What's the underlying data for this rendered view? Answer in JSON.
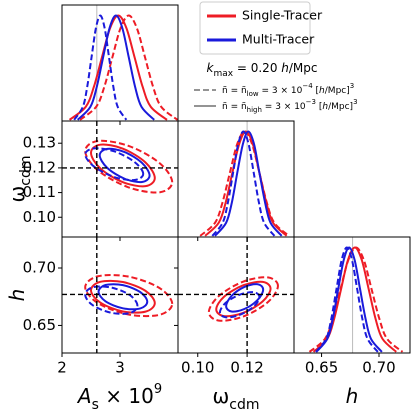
{
  "chart_data": {
    "type": "corner",
    "params": [
      {
        "label": [
          "A",
          "s",
          " × 10",
          "9"
        ],
        "lim": [
          2,
          4
        ],
        "xticks": [
          2,
          3
        ]
      },
      {
        "label": [
          "ω",
          "cdm"
        ],
        "lim": [
          0.092,
          0.139
        ],
        "xticks": [
          {
            "value": 0.1,
            "label": "0.10"
          },
          {
            "value": 0.12,
            "label": "0.12"
          }
        ],
        "yticks": [
          {
            "value": 0.1,
            "label": "0.10"
          },
          {
            "value": 0.11,
            "label": "0.11"
          },
          {
            "value": 0.12,
            "label": "0.12"
          },
          {
            "value": 0.13,
            "label": "0.13"
          }
        ]
      },
      {
        "label": [
          "h"
        ],
        "lim": [
          0.626,
          0.727
        ],
        "xticks": [
          {
            "value": 0.65,
            "label": "0.65"
          },
          {
            "value": 0.7,
            "label": "0.70"
          }
        ],
        "yticks": [
          {
            "value": 0.65,
            "label": "0.65"
          },
          {
            "value": 0.7,
            "label": "0.70"
          }
        ]
      }
    ],
    "marginal_ylim": [
      0,
      1.1
    ],
    "fiducial": [
      2.6,
      0.12,
      0.677
    ],
    "annotation": [
      "k",
      "max",
      " = 0.20 ",
      "h",
      "/Mpc"
    ],
    "line_styles": [
      {
        "dash": "dashed",
        "label": [
          "ñ = ñ",
          "low",
          " = 3 × 10",
          "−4",
          " [",
          "h",
          "/Mpc]",
          "3"
        ]
      },
      {
        "dash": "solid",
        "label": [
          "ñ = ñ",
          "high",
          " = 3 × 10",
          "−3",
          " [",
          "h",
          "/Mpc]",
          "3"
        ]
      }
    ],
    "series": [
      {
        "name": "Single-Tracer",
        "color": "#ee1c25",
        "styles": [
          {
            "marginals": [
              {
                "x": [
                  2.31,
                  2.59,
                  2.73,
                  2.87,
                  3.01,
                  3.15,
                  3.29,
                  3.43,
                  3.57,
                  3.71,
                  3.99
                ],
                "values": [
                  0.011,
                  0.135,
                  0.325,
                  0.607,
                  0.882,
                  1,
                  0.882,
                  0.607,
                  0.325,
                  0.135,
                  0.011
                ]
              },
              {
                "x": [
                  0.101,
                  0.107,
                  0.11,
                  0.113,
                  0.116,
                  0.119,
                  0.122,
                  0.125,
                  0.128,
                  0.131,
                  0.137
                ],
                "values": [
                  0.011,
                  0.135,
                  0.325,
                  0.607,
                  0.882,
                  1,
                  0.882,
                  0.607,
                  0.325,
                  0.135,
                  0.011
                ]
              },
              {
                "x": [
                  0.6395,
                  0.653,
                  0.6598,
                  0.6665,
                  0.6733,
                  0.68,
                  0.6868,
                  0.6935,
                  0.7003,
                  0.707,
                  0.7205
                ],
                "values": [
                  0.011,
                  0.135,
                  0.325,
                  0.607,
                  0.882,
                  1,
                  0.882,
                  0.607,
                  0.325,
                  0.135,
                  0.011
                ]
              }
            ],
            "contours": [
              {
                "x": [
                  3.9,
                  3.68,
                  3.15,
                  2.62,
                  2.4,
                  2.62,
                  3.15,
                  3.68
                ],
                "y": [
                  0.1142,
                  0.122,
                  0.1289,
                  0.1309,
                  0.1268,
                  0.119,
                  0.1121,
                  0.1101
                ]
              },
              {
                "x": [
                  3.9,
                  3.68,
                  3.15,
                  2.62,
                  2.4,
                  2.62,
                  3.15,
                  3.68
                ],
                "y": [
                  0.6688,
                  0.6826,
                  0.6925,
                  0.6928,
                  0.6832,
                  0.6694,
                  0.6595,
                  0.6592
                ]
              },
              {
                "x": [
                  0.1325,
                  0.1284,
                  0.1185,
                  0.1086,
                  0.1045,
                  0.1086,
                  0.1185,
                  0.1284
                ],
                "y": [
                  0.6844,
                  0.6918,
                  0.6882,
                  0.6757,
                  0.6616,
                  0.6542,
                  0.6578,
                  0.6703
                ]
              }
            ]
          },
          {
            "marginals": [
              {
                "x": [
                  2.13,
                  2.41,
                  2.55,
                  2.69,
                  2.83,
                  2.97,
                  3.11,
                  3.25,
                  3.39,
                  3.53,
                  3.81
                ],
                "values": [
                  0.011,
                  0.135,
                  0.325,
                  0.607,
                  0.882,
                  1,
                  0.882,
                  0.607,
                  0.325,
                  0.135,
                  0.011
                ]
              },
              {
                "x": [
                  0.103,
                  0.1085,
                  0.1113,
                  0.114,
                  0.1168,
                  0.1195,
                  0.1223,
                  0.125,
                  0.1278,
                  0.1305,
                  0.136
                ],
                "values": [
                  0.011,
                  0.135,
                  0.325,
                  0.607,
                  0.882,
                  1,
                  0.882,
                  0.607,
                  0.325,
                  0.135,
                  0.011
                ]
              },
              {
                "x": [
                  0.643,
                  0.655,
                  0.661,
                  0.667,
                  0.673,
                  0.679,
                  0.685,
                  0.691,
                  0.697,
                  0.703,
                  0.715
                ],
                "values": [
                  0.011,
                  0.135,
                  0.325,
                  0.607,
                  0.882,
                  1,
                  0.882,
                  0.607,
                  0.325,
                  0.135,
                  0.011
                ]
              }
            ],
            "contours": [
              {
                "x": [
                  3.6,
                  3.44,
                  3.05,
                  2.66,
                  2.5,
                  2.66,
                  3.05,
                  3.44
                ],
                "y": [
                  0.1159,
                  0.1222,
                  0.1278,
                  0.1294,
                  0.1261,
                  0.1198,
                  0.1142,
                  0.1126
                ]
              },
              {
                "x": [
                  3.6,
                  3.44,
                  3.05,
                  2.66,
                  2.5,
                  2.66,
                  3.05,
                  3.44
                ],
                "y": [
                  0.6694,
                  0.6801,
                  0.6878,
                  0.688,
                  0.6806,
                  0.6699,
                  0.6622,
                  0.662
                ]
              },
              {
                "x": [
                  0.1295,
                  0.1263,
                  0.1185,
                  0.1107,
                  0.1075,
                  0.1107,
                  0.1185,
                  0.1263
                ],
                "y": [
                  0.682,
                  0.6879,
                  0.685,
                  0.6751,
                  0.664,
                  0.6581,
                  0.661,
                  0.6709
                ]
              }
            ]
          }
        ]
      },
      {
        "name": "Multi-Tracer",
        "color": "#1a1adb",
        "styles": [
          {
            "marginals": [
              {
                "x": [
                  2.21,
                  2.36,
                  2.435,
                  2.51,
                  2.585,
                  2.66,
                  2.735,
                  2.81,
                  2.885,
                  2.96,
                  3.11
                ],
                "values": [
                  0.011,
                  0.135,
                  0.325,
                  0.607,
                  0.882,
                  1,
                  0.882,
                  0.607,
                  0.325,
                  0.135,
                  0.011
                ]
              },
              {
                "x": [
                  0.1059,
                  0.1101,
                  0.1122,
                  0.1143,
                  0.1164,
                  0.1185,
                  0.1206,
                  0.1227,
                  0.1248,
                  0.1269,
                  0.1311
                ],
                "values": [
                  0.011,
                  0.135,
                  0.325,
                  0.607,
                  0.882,
                  1,
                  0.882,
                  0.607,
                  0.325,
                  0.135,
                  0.011
                ]
              },
              {
                "x": [
                  0.645,
                  0.654,
                  0.6585,
                  0.663,
                  0.6675,
                  0.672,
                  0.6765,
                  0.681,
                  0.6855,
                  0.69,
                  0.699
                ],
                "values": [
                  0.011,
                  0.135,
                  0.325,
                  0.607,
                  0.882,
                  1,
                  0.882,
                  0.607,
                  0.325,
                  0.135,
                  0.011
                ]
              }
            ],
            "contours": [
              {
                "x": [
                  3.4,
                  3.25,
                  2.9,
                  2.55,
                  2.4,
                  2.55,
                  2.9,
                  3.25
                ],
                "y": [
                  0.1176,
                  0.1224,
                  0.1267,
                  0.1279,
                  0.1254,
                  0.1206,
                  0.1163,
                  0.1151
                ]
              },
              {
                "x": [
                  3.3,
                  3.17,
                  2.85,
                  2.53,
                  2.4,
                  2.53,
                  2.85,
                  3.17
                ],
                "y": [
                  0.6672,
                  0.6764,
                  0.683,
                  0.6832,
                  0.6768,
                  0.6676,
                  0.661,
                  0.6608
                ]
              },
              {
                "x": [
                  0.125,
                  0.1227,
                  0.117,
                  0.1113,
                  0.109,
                  0.1113,
                  0.117,
                  0.1227
                ],
                "y": [
                  0.6746,
                  0.6789,
                  0.6768,
                  0.6696,
                  0.6614,
                  0.6571,
                  0.6592,
                  0.6664
                ]
              }
            ]
          },
          {
            "marginals": [
              {
                "x": [
                  2.27,
                  2.49,
                  2.6,
                  2.71,
                  2.82,
                  2.93,
                  3.04,
                  3.15,
                  3.26,
                  3.37,
                  3.59
                ],
                "values": [
                  0.011,
                  0.135,
                  0.325,
                  0.607,
                  0.882,
                  1,
                  0.882,
                  0.607,
                  0.325,
                  0.135,
                  0.011
                ]
              },
              {
                "x": [
                  0.107,
                  0.1115,
                  0.1138,
                  0.116,
                  0.1183,
                  0.1205,
                  0.1228,
                  0.125,
                  0.1273,
                  0.1295,
                  0.134
                ],
                "values": [
                  0.011,
                  0.135,
                  0.325,
                  0.607,
                  0.882,
                  1,
                  0.882,
                  0.607,
                  0.325,
                  0.135,
                  0.011
                ]
              },
              {
                "x": [
                  0.6455,
                  0.655,
                  0.6598,
                  0.6645,
                  0.6693,
                  0.674,
                  0.6788,
                  0.6835,
                  0.6883,
                  0.693,
                  0.7025
                ],
                "values": [
                  0.011,
                  0.135,
                  0.325,
                  0.607,
                  0.882,
                  1,
                  0.882,
                  0.607,
                  0.325,
                  0.135,
                  0.011
                ]
              }
            ],
            "contours": [
              {
                "x": [
                  3.51,
                  3.38,
                  3.08,
                  2.78,
                  2.65,
                  2.78,
                  3.08,
                  3.38
                ],
                "y": [
                  0.1169,
                  0.122,
                  0.1264,
                  0.1277,
                  0.1251,
                  0.12,
                  0.1156,
                  0.1143
                ]
              },
              {
                "x": [
                  3.47,
                  3.35,
                  3.05,
                  2.75,
                  2.63,
                  2.75,
                  3.05,
                  3.35
                ],
                "y": [
                  0.6706,
                  0.679,
                  0.6851,
                  0.6852,
                  0.6794,
                  0.671,
                  0.6649,
                  0.6648
                ]
              },
              {
                "x": [
                  0.1265,
                  0.1243,
                  0.119,
                  0.1137,
                  0.1115,
                  0.1137,
                  0.119,
                  0.1243
                ],
                "y": [
                  0.6812,
                  0.6859,
                  0.6836,
                  0.6757,
                  0.6668,
                  0.6621,
                  0.6644,
                  0.6723
                ]
              }
            ]
          }
        ]
      }
    ]
  }
}
